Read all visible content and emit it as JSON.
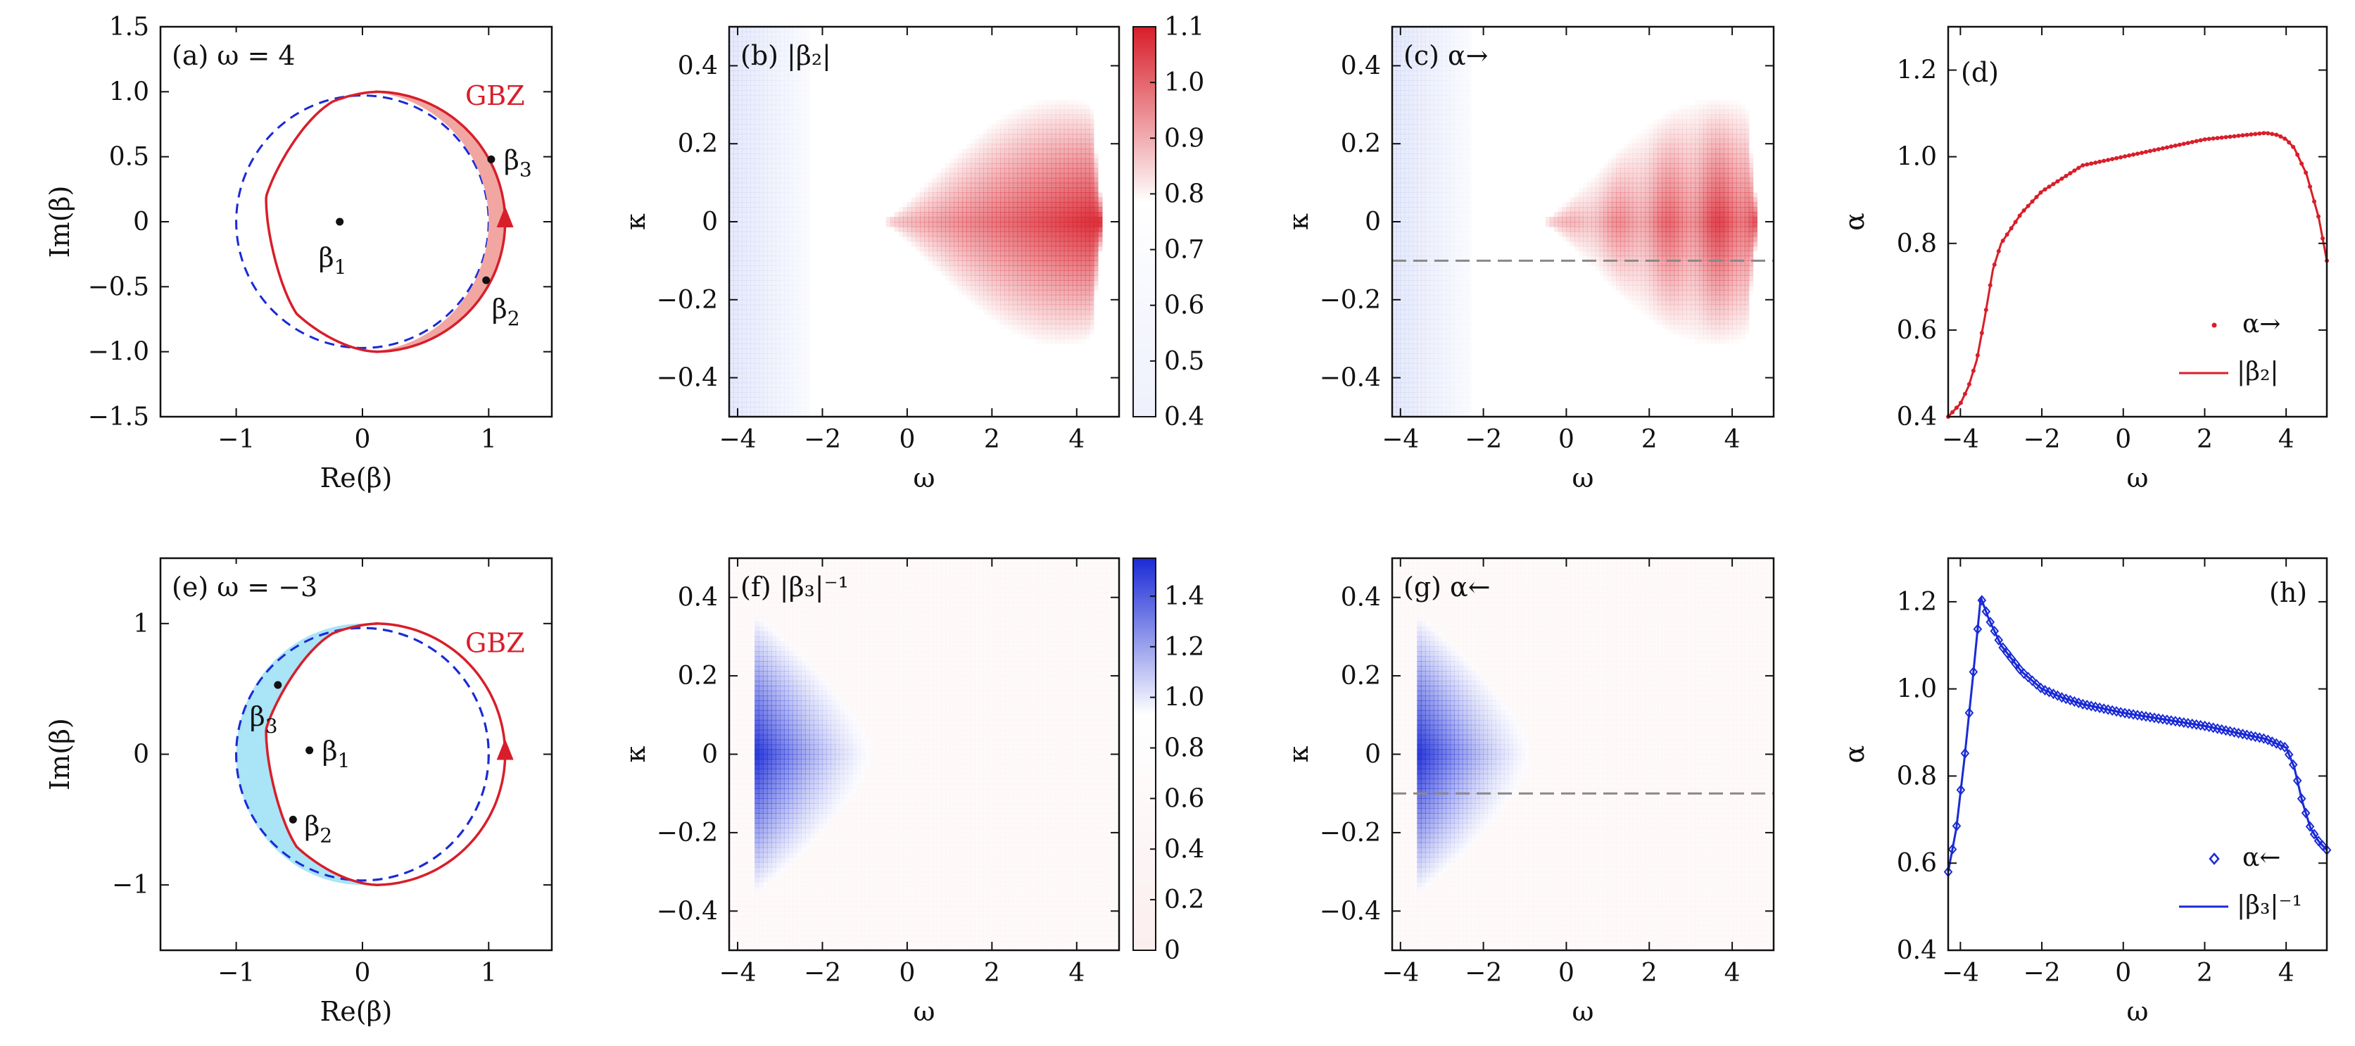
{
  "colors": {
    "red": "#d81e2a",
    "blue": "#1a2ad6",
    "lightblue": "#a9e4f7",
    "lightred": "#f1a6a2",
    "gray": "#888888"
  },
  "chart_data": [
    {
      "id": "a",
      "type": "scatter",
      "title": "(a) ω = 4",
      "xlabel": "Re(β)",
      "ylabel": "Im(β)",
      "xlim": [
        -1.6,
        1.5
      ],
      "ylim": [
        -1.5,
        1.5
      ],
      "xticks": [
        "−1",
        "0",
        "1"
      ],
      "xtick_values": [
        -1,
        0,
        1
      ],
      "yticks": [
        "1.5",
        "1.0",
        "0.5",
        "0",
        "−0.5",
        "−1.0",
        "−1.5"
      ],
      "ytick_values": [
        1.5,
        1.0,
        0.5,
        0,
        -0.5,
        -1.0,
        -1.5
      ],
      "curve_label": "GBZ",
      "points": [
        {
          "label": "β",
          "sub": "1",
          "x": -0.18,
          "y": 0.0
        },
        {
          "label": "β",
          "sub": "2",
          "x": 0.98,
          "y": -0.45
        },
        {
          "label": "β",
          "sub": "3",
          "x": 1.02,
          "y": 0.48
        }
      ]
    },
    {
      "id": "b",
      "type": "heatmap",
      "title": "(b) |β₂|",
      "xlabel": "ω",
      "ylabel": "κ",
      "xlim": [
        -4.2,
        5.0
      ],
      "ylim": [
        -0.5,
        0.5
      ],
      "xticks": [
        "−4",
        "−2",
        "0",
        "2",
        "4"
      ],
      "xtick_values": [
        -4,
        -2,
        0,
        2,
        4
      ],
      "yticks": [
        "0.4",
        "0.2",
        "0",
        "−0.2",
        "−0.4"
      ],
      "ytick_values": [
        0.4,
        0.2,
        0,
        -0.2,
        -0.4
      ],
      "colorbar": {
        "range": [
          0.4,
          1.1
        ],
        "ticks": [
          "1.1",
          "1.0",
          "0.9",
          "0.8",
          "0.7",
          "0.6",
          "0.5",
          "0.4"
        ],
        "tick_values": [
          1.1,
          1.0,
          0.9,
          0.8,
          0.7,
          0.6,
          0.5,
          0.4
        ]
      }
    },
    {
      "id": "c",
      "type": "heatmap",
      "title": "(c) α→",
      "xlabel": "ω",
      "ylabel": "κ",
      "xlim": [
        -4.2,
        5.0
      ],
      "ylim": [
        -0.5,
        0.5
      ],
      "xticks": [
        "−4",
        "−2",
        "0",
        "2",
        "4"
      ],
      "xtick_values": [
        -4,
        -2,
        0,
        2,
        4
      ],
      "yticks": [
        "0.4",
        "0.2",
        "0",
        "−0.2",
        "−0.4"
      ],
      "ytick_values": [
        0.4,
        0.2,
        0,
        -0.2,
        -0.4
      ],
      "dashed_line_kappa": -0.1
    },
    {
      "id": "d",
      "type": "line",
      "title": "(d)",
      "xlabel": "ω",
      "ylabel": "α",
      "xlim": [
        -4.3,
        5.0
      ],
      "ylim": [
        0.4,
        1.3
      ],
      "xticks": [
        "−4",
        "−2",
        "0",
        "2",
        "4"
      ],
      "xtick_values": [
        -4,
        -2,
        0,
        2,
        4
      ],
      "yticks": [
        "1.2",
        "1.0",
        "0.8",
        "0.6",
        "0.4"
      ],
      "ytick_values": [
        1.2,
        1.0,
        0.8,
        0.6,
        0.4
      ],
      "series": [
        {
          "name": "α→",
          "kind": "points"
        },
        {
          "name": "|β₂|",
          "kind": "line"
        }
      ],
      "x": [
        -4.3,
        -4.0,
        -3.8,
        -3.6,
        -3.4,
        -3.2,
        -3.0,
        -2.5,
        -2.0,
        -1.5,
        -1.0,
        0.0,
        1.0,
        2.0,
        3.0,
        3.5,
        3.8,
        4.0,
        4.2,
        4.5,
        4.8,
        5.0
      ],
      "y": [
        0.4,
        0.43,
        0.47,
        0.53,
        0.63,
        0.74,
        0.8,
        0.87,
        0.92,
        0.95,
        0.98,
        1.0,
        1.02,
        1.04,
        1.05,
        1.055,
        1.05,
        1.04,
        1.02,
        0.96,
        0.86,
        0.76
      ]
    },
    {
      "id": "e",
      "type": "scatter",
      "title": "(e) ω = −3",
      "xlabel": "Re(β)",
      "ylabel": "Im(β)",
      "xlim": [
        -1.6,
        1.5
      ],
      "ylim": [
        -1.5,
        1.5
      ],
      "xticks": [
        "−1",
        "0",
        "1"
      ],
      "xtick_values": [
        -1,
        0,
        1
      ],
      "yticks": [
        "1",
        "0",
        "−1"
      ],
      "ytick_values": [
        1,
        0,
        -1
      ],
      "curve_label": "GBZ",
      "points": [
        {
          "label": "β",
          "sub": "1",
          "x": -0.42,
          "y": 0.03
        },
        {
          "label": "β",
          "sub": "2",
          "x": -0.55,
          "y": -0.5
        },
        {
          "label": "β",
          "sub": "3",
          "x": -0.67,
          "y": 0.53
        }
      ]
    },
    {
      "id": "f",
      "type": "heatmap",
      "title": "(f) |β₃|⁻¹",
      "xlabel": "ω",
      "ylabel": "κ",
      "xlim": [
        -4.2,
        5.0
      ],
      "ylim": [
        -0.5,
        0.5
      ],
      "xticks": [
        "−4",
        "−2",
        "0",
        "2",
        "4"
      ],
      "xtick_values": [
        -4,
        -2,
        0,
        2,
        4
      ],
      "yticks": [
        "0.4",
        "0.2",
        "0",
        "−0.2",
        "−0.4"
      ],
      "ytick_values": [
        0.4,
        0.2,
        0,
        -0.2,
        -0.4
      ],
      "colorbar": {
        "range": [
          0,
          1.55
        ],
        "ticks": [
          "1.4",
          "1.2",
          "1.0",
          "0.8",
          "0.6",
          "0.4",
          "0.2",
          "0"
        ],
        "tick_values": [
          1.4,
          1.2,
          1.0,
          0.8,
          0.6,
          0.4,
          0.2,
          0
        ]
      }
    },
    {
      "id": "g",
      "type": "heatmap",
      "title": "(g) α←",
      "xlabel": "ω",
      "ylabel": "κ",
      "xlim": [
        -4.2,
        5.0
      ],
      "ylim": [
        -0.5,
        0.5
      ],
      "xticks": [
        "−4",
        "−2",
        "0",
        "2",
        "4"
      ],
      "xtick_values": [
        -4,
        -2,
        0,
        2,
        4
      ],
      "yticks": [
        "0.4",
        "0.2",
        "0",
        "−0.2",
        "−0.4"
      ],
      "ytick_values": [
        0.4,
        0.2,
        0,
        -0.2,
        -0.4
      ],
      "dashed_line_kappa": -0.1
    },
    {
      "id": "h",
      "type": "line",
      "title": "(h)",
      "xlabel": "ω",
      "ylabel": "α",
      "xlim": [
        -4.3,
        5.0
      ],
      "ylim": [
        0.4,
        1.3
      ],
      "xticks": [
        "−4",
        "−2",
        "0",
        "2",
        "4"
      ],
      "xtick_values": [
        -4,
        -2,
        0,
        2,
        4
      ],
      "yticks": [
        "1.2",
        "1.0",
        "0.8",
        "0.6",
        "0.4"
      ],
      "ytick_values": [
        1.2,
        1.0,
        0.8,
        0.6,
        0.4
      ],
      "series": [
        {
          "name": "α←",
          "kind": "points"
        },
        {
          "name": "|β₃|⁻¹",
          "kind": "line"
        }
      ],
      "x": [
        -4.3,
        -4.1,
        -3.9,
        -3.7,
        -3.5,
        -3.3,
        -3.0,
        -2.5,
        -2.0,
        -1.5,
        -1.0,
        0.0,
        1.0,
        2.0,
        3.0,
        3.5,
        4.0,
        4.2,
        4.4,
        4.6,
        4.8,
        5.0
      ],
      "y": [
        0.58,
        0.68,
        0.84,
        1.02,
        1.21,
        1.16,
        1.1,
        1.04,
        1.0,
        0.98,
        0.965,
        0.945,
        0.93,
        0.915,
        0.895,
        0.885,
        0.865,
        0.82,
        0.74,
        0.68,
        0.65,
        0.63
      ]
    }
  ]
}
